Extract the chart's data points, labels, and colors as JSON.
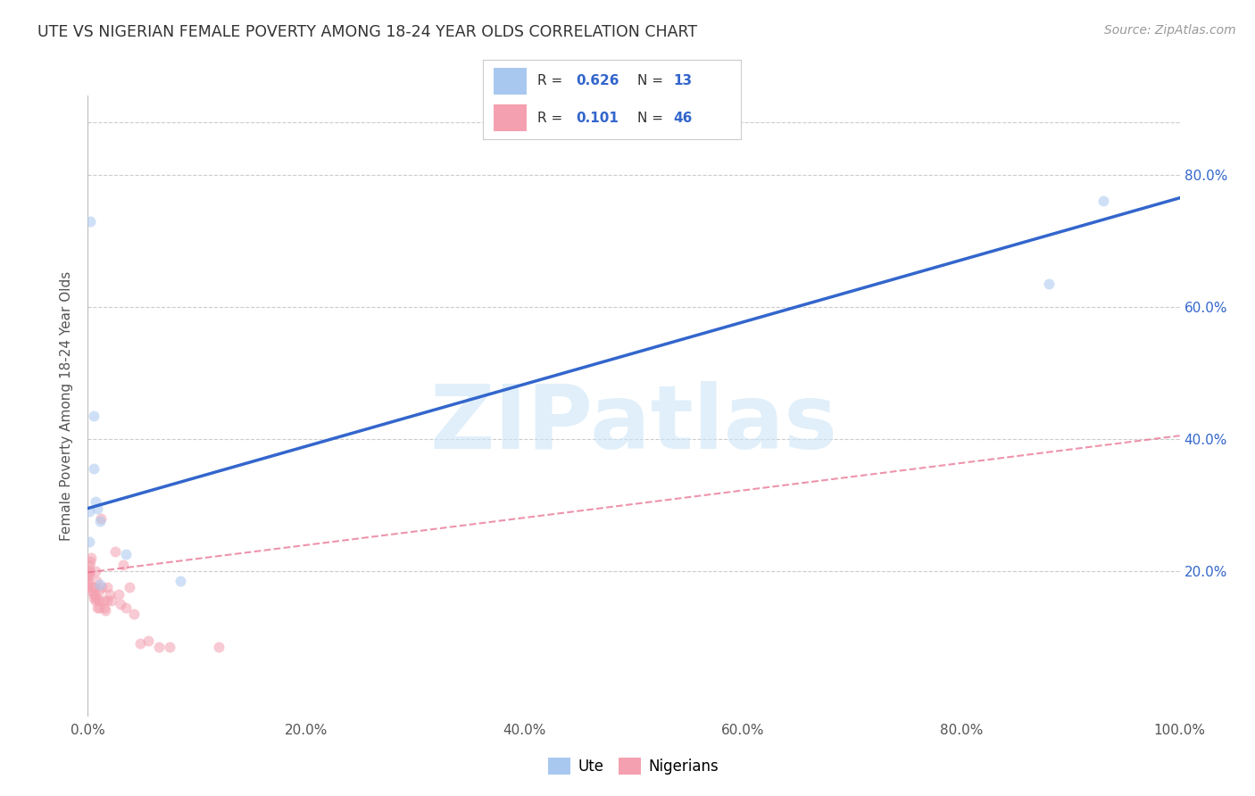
{
  "title": "UTE VS NIGERIAN FEMALE POVERTY AMONG 18-24 YEAR OLDS CORRELATION CHART",
  "source": "Source: ZipAtlas.com",
  "ylabel": "Female Poverty Among 18-24 Year Olds",
  "watermark": "ZIPatlas",
  "ute_R": 0.626,
  "ute_N": 13,
  "nigerian_R": 0.101,
  "nigerian_N": 46,
  "ute_color": "#a8c8f0",
  "nigerian_color": "#f4a0b0",
  "ute_line_color": "#3366cc",
  "nigerian_line_color": "#e87090",
  "legend_text_color": "#3366cc",
  "title_color": "#333333",
  "ute_x": [
    0.002,
    0.001,
    0.001,
    0.005,
    0.005,
    0.007,
    0.009,
    0.011,
    0.011,
    0.035,
    0.085,
    0.88,
    0.93
  ],
  "ute_y": [
    0.73,
    0.29,
    0.245,
    0.435,
    0.355,
    0.305,
    0.295,
    0.275,
    0.18,
    0.225,
    0.185,
    0.635,
    0.76
  ],
  "nigerian_x": [
    0.0,
    0.0,
    0.0,
    0.0,
    0.0,
    0.0,
    0.001,
    0.001,
    0.002,
    0.002,
    0.003,
    0.003,
    0.004,
    0.005,
    0.005,
    0.006,
    0.006,
    0.007,
    0.007,
    0.008,
    0.008,
    0.009,
    0.01,
    0.01,
    0.01,
    0.012,
    0.013,
    0.014,
    0.015,
    0.016,
    0.018,
    0.018,
    0.02,
    0.022,
    0.025,
    0.028,
    0.03,
    0.032,
    0.035,
    0.038,
    0.042,
    0.048,
    0.055,
    0.065,
    0.075,
    0.12
  ],
  "nigerian_y": [
    0.2,
    0.195,
    0.19,
    0.185,
    0.18,
    0.175,
    0.21,
    0.195,
    0.215,
    0.2,
    0.22,
    0.17,
    0.175,
    0.165,
    0.16,
    0.175,
    0.165,
    0.2,
    0.155,
    0.185,
    0.16,
    0.145,
    0.155,
    0.17,
    0.145,
    0.28,
    0.175,
    0.155,
    0.145,
    0.14,
    0.155,
    0.175,
    0.165,
    0.155,
    0.23,
    0.165,
    0.15,
    0.21,
    0.145,
    0.175,
    0.135,
    0.09,
    0.095,
    0.085,
    0.085,
    0.085
  ],
  "ute_line_x0": 0.0,
  "ute_line_y0": 0.295,
  "ute_line_x1": 1.0,
  "ute_line_y1": 0.765,
  "nig_line_x0": 0.0,
  "nig_line_y0": 0.198,
  "nig_line_x1": 1.0,
  "nig_line_y1": 0.405,
  "xlim": [
    0.0,
    1.0
  ],
  "ylim": [
    -0.02,
    0.92
  ],
  "xticks": [
    0.0,
    0.2,
    0.4,
    0.6,
    0.8,
    1.0
  ],
  "yticks_right": [
    0.2,
    0.4,
    0.6,
    0.8
  ],
  "xticklabels": [
    "0.0%",
    "20.0%",
    "40.0%",
    "60.0%",
    "80.0%",
    "100.0%"
  ],
  "yticklabels_right": [
    "20.0%",
    "40.0%",
    "60.0%",
    "80.0%"
  ],
  "grid_color": "#cccccc",
  "background_color": "#ffffff",
  "marker_size": 75,
  "marker_alpha": 0.55
}
